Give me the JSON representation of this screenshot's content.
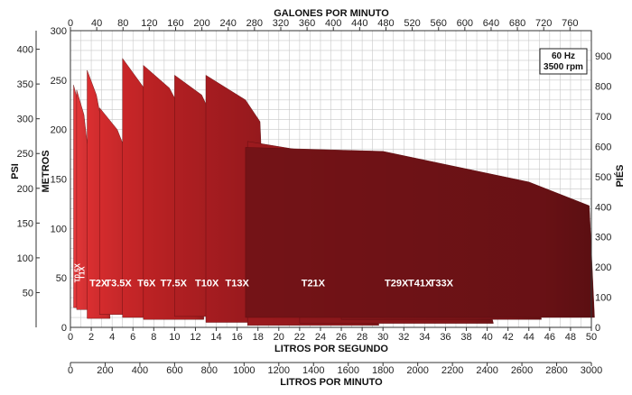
{
  "chart_data": {
    "type": "area",
    "badge": {
      "line1": "60 Hz",
      "line2": "3500 rpm"
    },
    "axes": {
      "bottom_lps": {
        "label": "LITROS POR SEGUNDO",
        "range": [
          0,
          50
        ],
        "ticks": [
          0,
          2,
          4,
          6,
          8,
          10,
          12,
          14,
          16,
          18,
          20,
          22,
          24,
          26,
          28,
          30,
          32,
          34,
          36,
          38,
          40,
          42,
          44,
          46,
          48,
          50
        ]
      },
      "bottom_lpm": {
        "label": "LITROS POR MINUTO",
        "range": [
          0,
          3000
        ],
        "ticks": [
          0,
          200,
          400,
          600,
          800,
          1000,
          1200,
          1400,
          1600,
          1800,
          2000,
          2200,
          2400,
          2600,
          2800,
          3000
        ]
      },
      "top_gpm": {
        "label": "GALONES POR MINUTO",
        "range": [
          0,
          792.5
        ],
        "ticks": [
          0,
          40,
          80,
          120,
          160,
          200,
          240,
          280,
          320,
          360,
          400,
          440,
          480,
          520,
          560,
          600,
          640,
          680,
          720,
          760
        ]
      },
      "left_psi": {
        "label": "PSI",
        "range": [
          0,
          426.7
        ],
        "ticks": [
          50,
          100,
          150,
          200,
          250,
          300,
          350,
          400
        ]
      },
      "left_meters": {
        "label": "METROS",
        "range": [
          0,
          300
        ],
        "ticks": [
          0,
          50,
          100,
          150,
          200,
          250,
          300
        ]
      },
      "right_feet": {
        "label": "PIÉS",
        "range": [
          0,
          984.3
        ],
        "ticks": [
          0,
          100,
          200,
          300,
          400,
          500,
          600,
          700,
          800,
          900
        ]
      }
    },
    "grid": true,
    "series": [
      {
        "name": "T0.5X",
        "color": "#e83a3d",
        "points": [
          [
            0.3,
            245
          ],
          [
            0.8,
            225
          ],
          [
            1.2,
            172
          ],
          [
            1.5,
            20
          ]
        ]
      },
      {
        "name": "T1X",
        "color": "#e23537",
        "points": [
          [
            0.6,
            240
          ],
          [
            1.3,
            215
          ],
          [
            2.0,
            150
          ],
          [
            2.1,
            18
          ]
        ]
      },
      {
        "name": "T2X",
        "color": "#dc2f31",
        "points": [
          [
            1.6,
            260
          ],
          [
            2.5,
            235
          ],
          [
            3.4,
            185
          ],
          [
            3.8,
            9
          ]
        ]
      },
      {
        "name": "T3.5X",
        "color": "#d42b2d",
        "points": [
          [
            2.8,
            222
          ],
          [
            4.5,
            200
          ],
          [
            5.8,
            165
          ],
          [
            6.4,
            13
          ]
        ]
      },
      {
        "name": "T6X",
        "color": "#c92628",
        "points": [
          [
            5.0,
            272
          ],
          [
            7.2,
            240
          ],
          [
            8.7,
            178
          ],
          [
            9.6,
            10
          ]
        ]
      },
      {
        "name": "T7.5X",
        "color": "#bd2224",
        "points": [
          [
            7.0,
            265
          ],
          [
            9.5,
            242
          ],
          [
            12.2,
            188
          ],
          [
            12.8,
            8
          ]
        ]
      },
      {
        "name": "T10X",
        "color": "#b01f22",
        "points": [
          [
            10.0,
            255
          ],
          [
            12.6,
            235
          ],
          [
            14.6,
            190
          ],
          [
            16.2,
            11
          ]
        ]
      },
      {
        "name": "T13X",
        "color": "#a61c20",
        "points": [
          [
            13.0,
            255
          ],
          [
            16.8,
            230
          ],
          [
            18.2,
            208
          ],
          [
            19.0,
            5
          ]
        ]
      },
      {
        "name": "T21X",
        "color": "#9c1a1e",
        "points": [
          [
            17.0,
            188
          ],
          [
            24.5,
            175
          ],
          [
            28.5,
            155
          ],
          [
            29.6,
            2
          ]
        ]
      },
      {
        "name": "T29X",
        "color": "#8e181c",
        "points": [
          [
            22.0,
            173
          ],
          [
            31.0,
            140
          ],
          [
            38.0,
            112
          ],
          [
            40.6,
            4
          ]
        ]
      },
      {
        "name": "T33X",
        "color": "#82161a",
        "points": [
          [
            26.0,
            175
          ],
          [
            38.5,
            145
          ],
          [
            44.0,
            115
          ],
          [
            45.2,
            8
          ]
        ]
      },
      {
        "name": "T41X",
        "color": "#741317",
        "points": [
          [
            16.8,
            182
          ],
          [
            30.0,
            178
          ],
          [
            44.0,
            147
          ],
          [
            49.8,
            123
          ],
          [
            50.3,
            10
          ]
        ]
      }
    ]
  }
}
